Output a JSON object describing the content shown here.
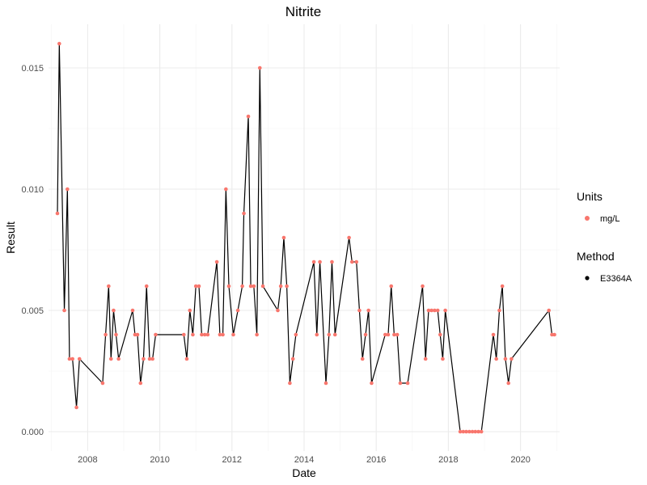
{
  "chart_data": {
    "type": "line",
    "title": "Nitrite",
    "xlabel": "Date",
    "ylabel": "Result",
    "xlim": [
      "2006-12-01",
      "2021-02-01"
    ],
    "ylim": [
      -0.0008,
      0.0168
    ],
    "x_ticks": [
      "2008",
      "2010",
      "2012",
      "2014",
      "2016",
      "2018",
      "2020"
    ],
    "y_ticks": [
      0.0,
      0.005,
      0.01,
      0.015
    ],
    "y_tick_labels": [
      "0.000",
      "0.005",
      "0.010",
      "0.015"
    ],
    "grid": true,
    "legend_position": "right",
    "point_color": "#F8766D",
    "line_color": "#000000",
    "legends": [
      {
        "title": "Units",
        "label": "mg/L",
        "color": "#F8766D"
      },
      {
        "title": "Method",
        "label": "E3364A",
        "color": "#000000"
      }
    ],
    "series": [
      {
        "points": [
          [
            "2007-03-01",
            0.009
          ],
          [
            "2007-03-20",
            0.016
          ],
          [
            "2007-05-10",
            0.005
          ],
          [
            "2007-06-10",
            0.01
          ],
          [
            "2007-07-01",
            0.003
          ],
          [
            "2007-08-01",
            0.003
          ],
          [
            "2007-09-10",
            0.001
          ],
          [
            "2007-10-10",
            0.003
          ],
          [
            "2008-06-01",
            0.002
          ],
          [
            "2008-07-01",
            0.004
          ],
          [
            "2008-08-01",
            0.006
          ],
          [
            "2008-08-25",
            0.003
          ],
          [
            "2008-09-20",
            0.005
          ],
          [
            "2008-10-15",
            0.004
          ],
          [
            "2008-11-10",
            0.003
          ],
          [
            "2009-04-01",
            0.005
          ],
          [
            "2009-04-25",
            0.004
          ],
          [
            "2009-05-20",
            0.004
          ],
          [
            "2009-06-20",
            0.002
          ],
          [
            "2009-07-20",
            0.003
          ],
          [
            "2009-08-20",
            0.006
          ],
          [
            "2009-09-20",
            0.003
          ],
          [
            "2009-10-20",
            0.003
          ],
          [
            "2009-11-20",
            0.004
          ],
          [
            "2010-09-01",
            0.004
          ],
          [
            "2010-10-01",
            0.003
          ],
          [
            "2010-11-01",
            0.005
          ],
          [
            "2010-12-01",
            0.004
          ],
          [
            "2011-01-01",
            0.006
          ],
          [
            "2011-02-01",
            0.006
          ],
          [
            "2011-03-01",
            0.004
          ],
          [
            "2011-04-01",
            0.004
          ],
          [
            "2011-05-01",
            0.004
          ],
          [
            "2011-08-01",
            0.007
          ],
          [
            "2011-09-01",
            0.004
          ],
          [
            "2011-10-01",
            0.004
          ],
          [
            "2011-11-01",
            0.01
          ],
          [
            "2011-12-01",
            0.006
          ],
          [
            "2012-01-15",
            0.004
          ],
          [
            "2012-03-01",
            0.005
          ],
          [
            "2012-04-15",
            0.006
          ],
          [
            "2012-05-01",
            0.009
          ],
          [
            "2012-06-15",
            0.013
          ],
          [
            "2012-07-10",
            0.006
          ],
          [
            "2012-08-10",
            0.006
          ],
          [
            "2012-09-10",
            0.004
          ],
          [
            "2012-10-10",
            0.015
          ],
          [
            "2012-11-10",
            0.006
          ],
          [
            "2013-04-10",
            0.005
          ],
          [
            "2013-05-10",
            0.006
          ],
          [
            "2013-06-10",
            0.008
          ],
          [
            "2013-07-10",
            0.006
          ],
          [
            "2013-08-10",
            0.002
          ],
          [
            "2013-09-10",
            0.003
          ],
          [
            "2013-10-10",
            0.004
          ],
          [
            "2014-04-10",
            0.007
          ],
          [
            "2014-05-10",
            0.004
          ],
          [
            "2014-06-10",
            0.007
          ],
          [
            "2014-08-10",
            0.002
          ],
          [
            "2014-09-10",
            0.004
          ],
          [
            "2014-10-10",
            0.007
          ],
          [
            "2014-11-10",
            0.004
          ],
          [
            "2015-04-01",
            0.008
          ],
          [
            "2015-05-01",
            0.007
          ],
          [
            "2015-06-15",
            0.007
          ],
          [
            "2015-07-15",
            0.005
          ],
          [
            "2015-08-15",
            0.003
          ],
          [
            "2015-09-15",
            0.004
          ],
          [
            "2015-10-15",
            0.005
          ],
          [
            "2015-11-15",
            0.002
          ],
          [
            "2016-04-01",
            0.004
          ],
          [
            "2016-05-01",
            0.004
          ],
          [
            "2016-06-01",
            0.006
          ],
          [
            "2016-07-01",
            0.004
          ],
          [
            "2016-08-01",
            0.004
          ],
          [
            "2016-09-01",
            0.002
          ],
          [
            "2016-11-15",
            0.002
          ],
          [
            "2017-04-15",
            0.006
          ],
          [
            "2017-05-15",
            0.003
          ],
          [
            "2017-06-15",
            0.005
          ],
          [
            "2017-07-15",
            0.005
          ],
          [
            "2017-08-15",
            0.005
          ],
          [
            "2017-09-15",
            0.005
          ],
          [
            "2017-10-10",
            0.004
          ],
          [
            "2017-11-05",
            0.003
          ],
          [
            "2017-12-01",
            0.005
          ],
          [
            "2018-05-01",
            0.0
          ],
          [
            "2018-06-01",
            0.0
          ],
          [
            "2018-07-01",
            0.0
          ],
          [
            "2018-08-01",
            0.0
          ],
          [
            "2018-09-01",
            0.0
          ],
          [
            "2018-10-01",
            0.0
          ],
          [
            "2018-11-01",
            0.0
          ],
          [
            "2018-12-01",
            0.0
          ],
          [
            "2019-04-01",
            0.004
          ],
          [
            "2019-05-01",
            0.003
          ],
          [
            "2019-06-01",
            0.005
          ],
          [
            "2019-07-01",
            0.006
          ],
          [
            "2019-08-01",
            0.003
          ],
          [
            "2019-09-01",
            0.002
          ],
          [
            "2019-10-01",
            0.003
          ],
          [
            "2020-10-15",
            0.005
          ],
          [
            "2020-11-15",
            0.004
          ],
          [
            "2020-12-10",
            0.004
          ]
        ]
      }
    ]
  }
}
